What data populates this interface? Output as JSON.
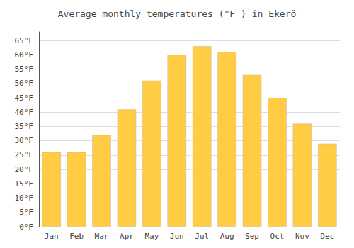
{
  "chart_data": {
    "type": "bar",
    "title": "Average monthly temperatures (°F ) in Ekerö",
    "categories": [
      "Jan",
      "Feb",
      "Mar",
      "Apr",
      "May",
      "Jun",
      "Jul",
      "Aug",
      "Sep",
      "Oct",
      "Nov",
      "Dec"
    ],
    "values": [
      26,
      26,
      32,
      41,
      51,
      60,
      63,
      61,
      53,
      45,
      36,
      29
    ],
    "color": "#FFCC44",
    "ylim": [
      0,
      68
    ],
    "yticks": [
      {
        "value": 0,
        "label": "0°F"
      },
      {
        "value": 5,
        "label": "5°F"
      },
      {
        "value": 10,
        "label": "10°F"
      },
      {
        "value": 15,
        "label": "15°F"
      },
      {
        "value": 20,
        "label": "20°F"
      },
      {
        "value": 25,
        "label": "25°F"
      },
      {
        "value": 30,
        "label": "30°F"
      },
      {
        "value": 35,
        "label": "35°F"
      },
      {
        "value": 40,
        "label": "40°F"
      },
      {
        "value": 45,
        "label": "45°F"
      },
      {
        "value": 50,
        "label": "50°F"
      },
      {
        "value": 55,
        "label": "55°F"
      },
      {
        "value": 60,
        "label": "60°F"
      },
      {
        "value": 65,
        "label": "65°F"
      }
    ],
    "grid": true
  }
}
